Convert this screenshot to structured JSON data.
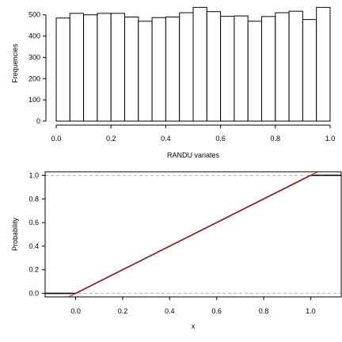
{
  "chart_data": [
    {
      "type": "bar",
      "subtype": "histogram",
      "xlabel": "RANDU variates",
      "ylabel": "Frequencies",
      "bin_edges": [
        0.0,
        0.05,
        0.1,
        0.15,
        0.2,
        0.25,
        0.3,
        0.35,
        0.4,
        0.45,
        0.5,
        0.55,
        0.6,
        0.65,
        0.7,
        0.75,
        0.8,
        0.85,
        0.9,
        0.95,
        1.0
      ],
      "values": [
        485,
        507,
        500,
        507,
        507,
        490,
        470,
        487,
        490,
        510,
        535,
        515,
        493,
        495,
        470,
        492,
        510,
        517,
        478,
        535
      ],
      "xlim": [
        0,
        1
      ],
      "ylim": [
        0,
        540
      ],
      "x_ticks": [
        "0.0",
        "0.2",
        "0.4",
        "0.6",
        "0.8",
        "1.0"
      ],
      "y_ticks": [
        "0",
        "100",
        "200",
        "300",
        "400",
        "500"
      ],
      "bar_fill": "#ffffff",
      "bar_stroke": "#000000"
    },
    {
      "type": "line",
      "subtype": "ecdf",
      "xlabel": "x",
      "ylabel": "Probability",
      "xlim": [
        -0.13,
        1.13
      ],
      "ylim": [
        -0.03,
        1.03
      ],
      "x_ticks": [
        "0.0",
        "0.2",
        "0.4",
        "0.6",
        "0.8",
        "1.0"
      ],
      "y_ticks": [
        "0.0",
        "0.2",
        "0.4",
        "0.6",
        "0.8",
        "1.0"
      ],
      "series": [
        {
          "role": "empirical",
          "color": "#000000",
          "x": [
            -0.13,
            0.0,
            1.0,
            1.13
          ],
          "y": [
            0.0,
            0.0,
            1.0,
            1.0
          ]
        },
        {
          "role": "theoretical",
          "color": "#b22222",
          "x": [
            -0.03,
            1.03
          ],
          "y": [
            -0.03,
            1.03
          ]
        }
      ],
      "reference_lines_y": [
        0.0,
        1.0
      ],
      "reference_line_color": "#bbbbbb"
    }
  ]
}
